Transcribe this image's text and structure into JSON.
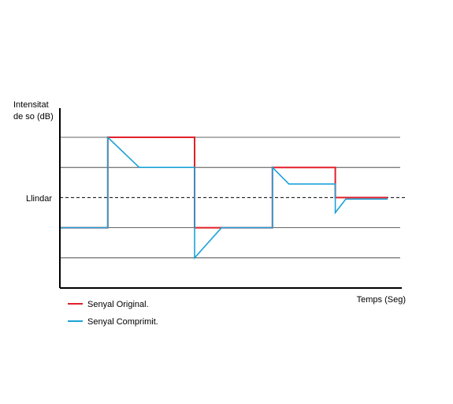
{
  "chart_data": {
    "type": "line",
    "title": "",
    "ylabel_lines": [
      "Intensitat",
      "de so (dB)"
    ],
    "xlabel": "Temps (Seg)",
    "threshold_label": "Llindar",
    "threshold_level": 3,
    "ylim": [
      0,
      5
    ],
    "xlim": [
      0,
      11.3
    ],
    "grid_levels_solid": [
      1,
      2,
      4,
      5
    ],
    "grid": true,
    "legend_position": "bottom-left",
    "series": [
      {
        "name": "Senyal Original.",
        "color": "#e0202a",
        "points": [
          [
            0,
            2
          ],
          [
            1.6,
            2
          ],
          [
            1.6,
            5
          ],
          [
            4.5,
            5
          ],
          [
            4.5,
            2
          ],
          [
            7.1,
            2
          ],
          [
            7.1,
            4
          ],
          [
            9.2,
            4
          ],
          [
            9.2,
            3
          ],
          [
            10.95,
            3
          ]
        ]
      },
      {
        "name": "Senyal Comprimit.",
        "color": "#1ba3d6",
        "points": [
          [
            0,
            2
          ],
          [
            1.6,
            2
          ],
          [
            1.6,
            5
          ],
          [
            2.65,
            4
          ],
          [
            4.5,
            4
          ],
          [
            4.5,
            1
          ],
          [
            5.4,
            2
          ],
          [
            7.1,
            2
          ],
          [
            7.1,
            4
          ],
          [
            7.65,
            3.45
          ],
          [
            9.2,
            3.45
          ],
          [
            9.2,
            2.5
          ],
          [
            9.55,
            2.95
          ],
          [
            10.95,
            2.95
          ]
        ]
      }
    ]
  }
}
